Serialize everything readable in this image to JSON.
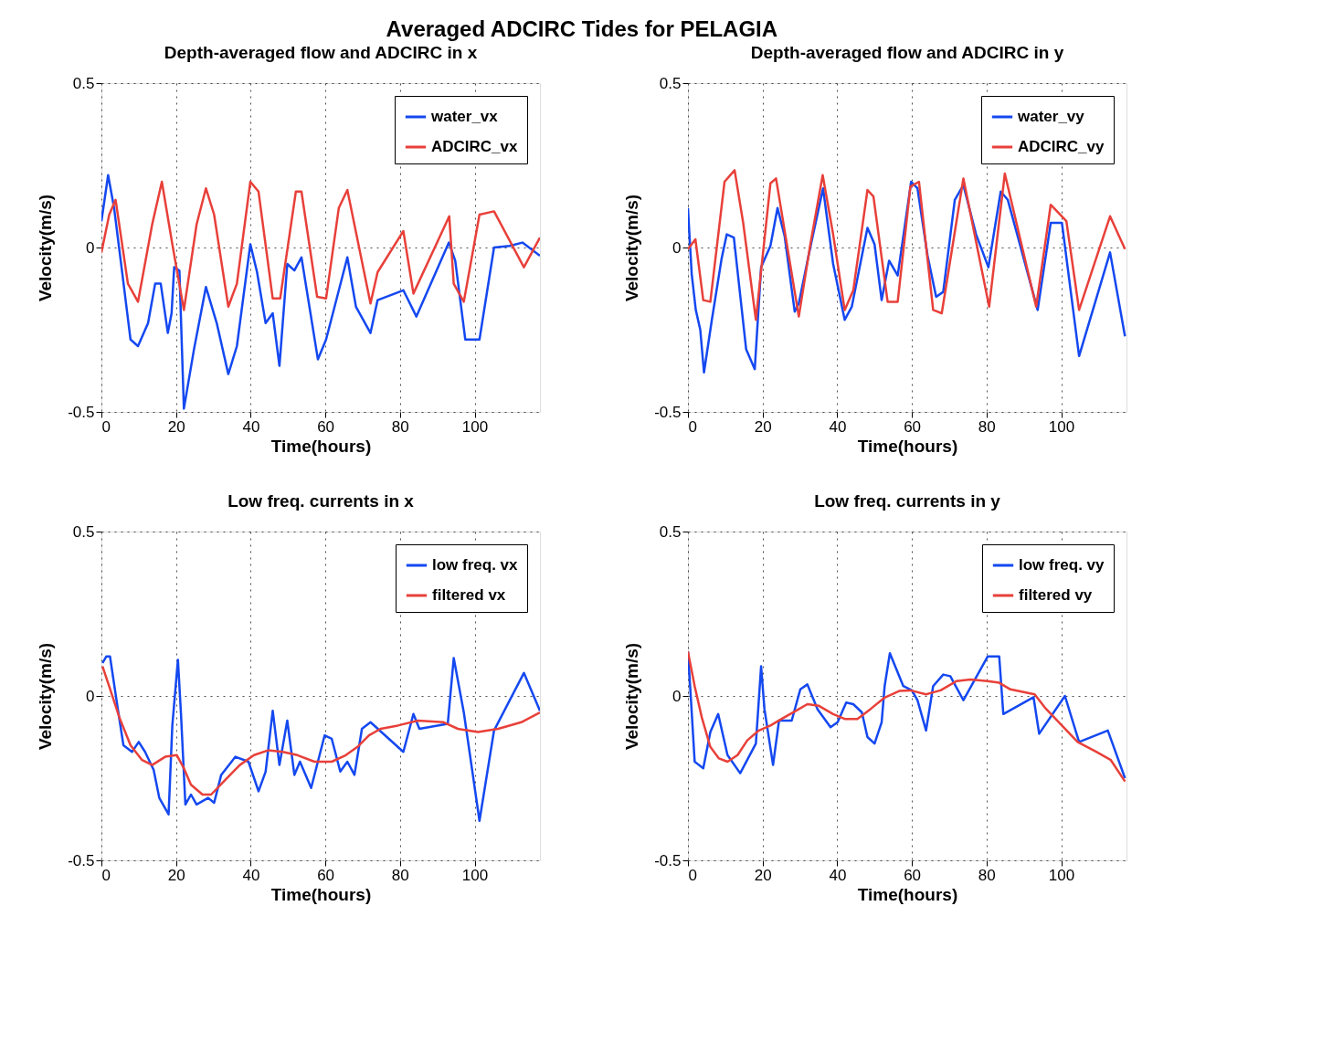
{
  "chart_data": [
    {
      "type": "line",
      "title": "Depth-averaged flow and ADCIRC in x",
      "xlabel": "Time(hours)",
      "ylabel": "Velocity(m/s)",
      "annotations": [
        "Averaged ADCIRC Tides for PELAGIA"
      ],
      "xlim": [
        0,
        117.5
      ],
      "ylim": [
        -0.5,
        0.5
      ],
      "xticks": [
        0,
        20,
        40,
        60,
        80,
        100
      ],
      "yticks": [
        -0.5,
        0,
        0.5
      ],
      "grid": true,
      "legend": "top right",
      "line_style": "solid",
      "series": [
        {
          "name": "water_vx",
          "color": "#1448f0",
          "x": [
            0,
            1.8,
            3.4,
            5.5,
            7.8,
            9.8,
            12.5,
            14.4,
            15.9,
            17.8,
            18.8,
            19.5,
            20.9,
            22.1,
            24.8,
            28,
            30.9,
            34,
            36.3,
            39.9,
            41.7,
            44,
            45.9,
            47.7,
            49.8,
            51.7,
            53.6,
            58,
            60.2,
            65.9,
            68.2,
            72.1,
            74,
            80.9,
            84.4,
            93.1,
            94.8,
            97.5,
            101.3,
            105.2,
            109.4,
            112.8,
            117.5
          ],
          "values": [
            0.08,
            0.22,
            0.12,
            -0.07,
            -0.28,
            -0.3,
            -0.23,
            -0.11,
            -0.11,
            -0.26,
            -0.2,
            -0.06,
            -0.07,
            -0.49,
            -0.31,
            -0.12,
            -0.23,
            -0.385,
            -0.3,
            0.01,
            -0.075,
            -0.23,
            -0.2,
            -0.36,
            -0.05,
            -0.07,
            -0.03,
            -0.34,
            -0.28,
            -0.03,
            -0.18,
            -0.26,
            -0.16,
            -0.13,
            -0.21,
            0.015,
            -0.04,
            -0.28,
            -0.28,
            0,
            0.005,
            0.015,
            -0.025
          ]
        },
        {
          "name": "ADCIRC_vx",
          "color": "#e8403a",
          "x": [
            0,
            2.1,
            3.8,
            7.1,
            9.8,
            13.6,
            16.2,
            19,
            22.1,
            25.5,
            28,
            30.2,
            34,
            36.3,
            39.9,
            42.1,
            45.9,
            47.9,
            52.1,
            53.6,
            57.8,
            60.2,
            63.6,
            65.9,
            72.1,
            74,
            80.9,
            83.6,
            93.2,
            94.4,
            97.1,
            101.3,
            105.2,
            113.2,
            117.5
          ],
          "values": [
            -0.015,
            0.1,
            0.145,
            -0.11,
            -0.165,
            0.07,
            0.2,
            0.01,
            -0.19,
            0.07,
            0.18,
            0.1,
            -0.18,
            -0.11,
            0.2,
            0.17,
            -0.155,
            -0.155,
            0.17,
            0.17,
            -0.15,
            -0.155,
            0.12,
            0.175,
            -0.17,
            -0.075,
            0.05,
            -0.14,
            0.095,
            -0.11,
            -0.165,
            0.1,
            0.11,
            -0.06,
            0.03
          ]
        }
      ]
    },
    {
      "type": "line",
      "title": "Depth-averaged flow and ADCIRC in y",
      "xlabel": "Time(hours)",
      "ylabel": "Velocity(m/s)",
      "xlim": [
        0,
        117.5
      ],
      "ylim": [
        -0.5,
        0.5
      ],
      "xticks": [
        0,
        20,
        40,
        60,
        80,
        100
      ],
      "yticks": [
        -0.5,
        0,
        0.5
      ],
      "grid": true,
      "legend": "top right",
      "line_style": "solid",
      "series": [
        {
          "name": "water_vy",
          "color": "#1448f0",
          "x": [
            0,
            1,
            2.1,
            3.3,
            4.3,
            6.4,
            9,
            10.4,
            12.3,
            15.6,
            17.9,
            19.6,
            22.1,
            24,
            25.9,
            28.6,
            29.7,
            32.4,
            36.2,
            38.9,
            42,
            43.9,
            48.1,
            50,
            51.9,
            53.9,
            56.2,
            59.8,
            61.5,
            64.2,
            66.5,
            68.4,
            71.5,
            73.8,
            77.2,
            80.5,
            83.8,
            85.7,
            93.7,
            97.2,
            100.2,
            104.8,
            113.1,
            117.1
          ],
          "values": [
            0.12,
            -0.08,
            -0.19,
            -0.25,
            -0.38,
            -0.22,
            -0.035,
            0.04,
            0.03,
            -0.31,
            -0.37,
            -0.06,
            0.005,
            0.12,
            0.035,
            -0.195,
            -0.17,
            -0.02,
            0.18,
            -0.05,
            -0.22,
            -0.18,
            0.06,
            0.01,
            -0.16,
            -0.04,
            -0.085,
            0.2,
            0.18,
            -0.025,
            -0.15,
            -0.135,
            0.145,
            0.19,
            0.04,
            -0.06,
            0.17,
            0.145,
            -0.19,
            0.075,
            0.075,
            -0.33,
            -0.015,
            -0.27
          ]
        },
        {
          "name": "ADCIRC_vy",
          "color": "#e8403a",
          "x": [
            0,
            2,
            4.1,
            6,
            9.8,
            12.5,
            14.8,
            18.2,
            22.1,
            23.6,
            29.7,
            32.8,
            36.1,
            38.9,
            42,
            44.3,
            48.1,
            49.7,
            53.5,
            56.2,
            59.6,
            61.9,
            65.7,
            68,
            73.8,
            80.7,
            84.9,
            93.3,
            97.2,
            101.4,
            104.8,
            113.1,
            117.1
          ],
          "values": [
            -0.005,
            0.025,
            -0.16,
            -0.165,
            0.2,
            0.235,
            0.075,
            -0.22,
            0.195,
            0.21,
            -0.21,
            0.01,
            0.22,
            0.04,
            -0.19,
            -0.13,
            0.175,
            0.155,
            -0.165,
            -0.165,
            0.185,
            0.2,
            -0.19,
            -0.2,
            0.21,
            -0.18,
            0.225,
            -0.18,
            0.13,
            0.08,
            -0.19,
            0.095,
            -0.005
          ]
        }
      ]
    },
    {
      "type": "line",
      "title": "Low freq. currents in x",
      "xlabel": "Time(hours)",
      "ylabel": "Velocity(m/s)",
      "xlim": [
        0,
        117.5
      ],
      "ylim": [
        -0.5,
        0.5
      ],
      "xticks": [
        0,
        20,
        40,
        60,
        80,
        100
      ],
      "yticks": [
        -0.5,
        0,
        0.5
      ],
      "grid": true,
      "legend": "top right",
      "line_style": "solid",
      "series": [
        {
          "name": "low freq. vx",
          "color": "#1448f0",
          "x": [
            0.3,
            1.3,
            2.3,
            4.4,
            5.9,
            8.2,
            10,
            11.7,
            14,
            15.5,
            18,
            19,
            20.5,
            21.3,
            22.5,
            24,
            25.5,
            28.6,
            30.2,
            32.1,
            35.9,
            39.4,
            42.1,
            44,
            45.9,
            47.7,
            49.8,
            51.7,
            53.2,
            56.2,
            59.8,
            61.7,
            64,
            65.9,
            67.8,
            69.8,
            72.1,
            80.9,
            83.6,
            85.2,
            92.8,
            94.4,
            97.1,
            101.3,
            105.2,
            113.2,
            117.5
          ],
          "values": [
            0.1,
            0.12,
            0.12,
            -0.04,
            -0.15,
            -0.17,
            -0.14,
            -0.17,
            -0.225,
            -0.31,
            -0.36,
            -0.09,
            0.11,
            -0.05,
            -0.33,
            -0.3,
            -0.33,
            -0.31,
            -0.325,
            -0.24,
            -0.185,
            -0.2,
            -0.29,
            -0.23,
            -0.045,
            -0.21,
            -0.075,
            -0.24,
            -0.2,
            -0.28,
            -0.12,
            -0.13,
            -0.23,
            -0.2,
            -0.24,
            -0.1,
            -0.08,
            -0.17,
            -0.055,
            -0.1,
            -0.085,
            0.115,
            -0.05,
            -0.38,
            -0.105,
            0.07,
            -0.045
          ]
        },
        {
          "name": "filtered vx",
          "color": "#e8403a",
          "x": [
            0.3,
            2.5,
            4.8,
            7.8,
            10.9,
            13.6,
            17.1,
            20.2,
            22.1,
            24,
            27.1,
            29.4,
            33.2,
            37.1,
            40.9,
            44.8,
            48.6,
            52.5,
            57.1,
            61.7,
            65.5,
            68.6,
            71.7,
            74.8,
            79.4,
            84.8,
            91.7,
            95.5,
            100.9,
            106.3,
            112.5,
            117.5
          ],
          "values": [
            0.09,
            0.015,
            -0.065,
            -0.15,
            -0.195,
            -0.21,
            -0.185,
            -0.18,
            -0.22,
            -0.27,
            -0.3,
            -0.3,
            -0.255,
            -0.21,
            -0.18,
            -0.165,
            -0.17,
            -0.18,
            -0.2,
            -0.2,
            -0.18,
            -0.155,
            -0.12,
            -0.1,
            -0.09,
            -0.075,
            -0.08,
            -0.1,
            -0.11,
            -0.1,
            -0.08,
            -0.05
          ]
        }
      ]
    },
    {
      "type": "line",
      "title": "Low freq. currents in y",
      "xlabel": "Time(hours)",
      "ylabel": "Velocity(m/s)",
      "xlim": [
        0,
        117.5
      ],
      "ylim": [
        -0.5,
        0.5
      ],
      "xticks": [
        0,
        20,
        40,
        60,
        80,
        100
      ],
      "yticks": [
        -0.5,
        0,
        0.5
      ],
      "grid": true,
      "legend": "top right",
      "line_style": "solid",
      "series": [
        {
          "name": "low freq. vy",
          "color": "#1448f0",
          "x": [
            0,
            0.8,
            1.8,
            4.1,
            6,
            8.1,
            10.6,
            14,
            18.2,
            19.6,
            20.5,
            22.8,
            24.4,
            27.8,
            30.1,
            32,
            34.7,
            38.2,
            40.1,
            42.4,
            44.3,
            46.6,
            48.1,
            50,
            51.9,
            52.7,
            54.1,
            57.7,
            60,
            61.5,
            63.8,
            65.7,
            68.4,
            70.3,
            73.8,
            80.3,
            83.4,
            84.5,
            92.6,
            94.1,
            101,
            104.8,
            112.5,
            117.1
          ],
          "values": [
            0.135,
            -0.01,
            -0.2,
            -0.22,
            -0.11,
            -0.055,
            -0.18,
            -0.235,
            -0.145,
            0.09,
            -0.04,
            -0.21,
            -0.075,
            -0.075,
            0.02,
            0.035,
            -0.04,
            -0.095,
            -0.08,
            -0.02,
            -0.025,
            -0.05,
            -0.125,
            -0.145,
            -0.08,
            0.03,
            0.13,
            0.03,
            0.017,
            -0.013,
            -0.105,
            0.03,
            0.065,
            0.06,
            -0.013,
            0.12,
            0.12,
            -0.055,
            -0.004,
            -0.115,
            0,
            -0.14,
            -0.105,
            -0.25
          ]
        },
        {
          "name": "filtered vy",
          "color": "#e8403a",
          "x": [
            0,
            1.8,
            3.7,
            6,
            8.3,
            10.6,
            13.3,
            15.9,
            19,
            22.1,
            25.1,
            29,
            32,
            35.1,
            38.9,
            42,
            45.4,
            48.9,
            52.7,
            56.6,
            59.6,
            63.8,
            67.7,
            71.9,
            75.7,
            80.3,
            83.4,
            86.4,
            92.9,
            95.6,
            100.2,
            104.4,
            109.4,
            113.3,
            117.1
          ],
          "values": [
            0.135,
            0.03,
            -0.065,
            -0.155,
            -0.19,
            -0.2,
            -0.18,
            -0.135,
            -0.105,
            -0.09,
            -0.07,
            -0.045,
            -0.025,
            -0.03,
            -0.055,
            -0.07,
            -0.07,
            -0.04,
            -0.005,
            0.015,
            0.017,
            0.005,
            0.017,
            0.045,
            0.05,
            0.045,
            0.04,
            0.02,
            0.005,
            -0.035,
            -0.09,
            -0.14,
            -0.17,
            -0.195,
            -0.26
          ]
        }
      ]
    }
  ]
}
